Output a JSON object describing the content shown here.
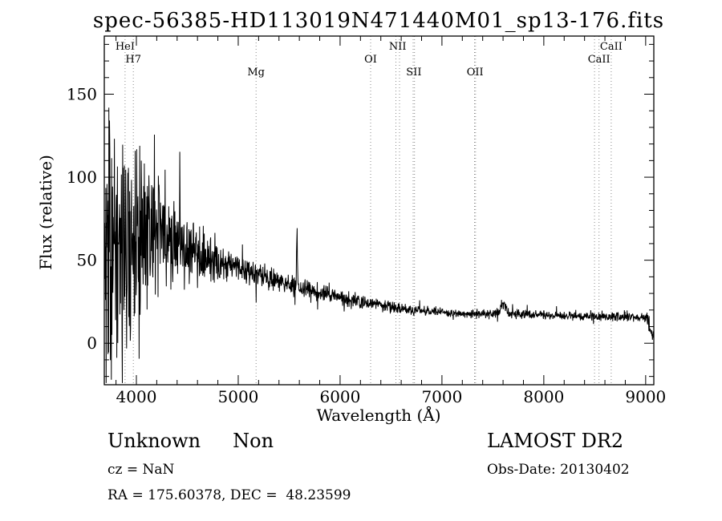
{
  "title": "spec-56385-HD113019N471440M01_sp13-176.fits",
  "chart_data": {
    "type": "line",
    "title": "spec-56385-HD113019N471440M01_sp13-176.fits",
    "xlabel": "Wavelength (Å)",
    "ylabel": "Flux (relative)",
    "series_name": "flux",
    "xlim": [
      3685,
      9080
    ],
    "ylim": [
      -25,
      185
    ],
    "x_major_ticks": [
      4000,
      5000,
      6000,
      7000,
      8000,
      9000
    ],
    "x_minor_tick_step": 200,
    "y_major_ticks": [
      0,
      50,
      100,
      150
    ],
    "y_minor_tick_step": 10,
    "grid": false,
    "line_color": "#000000",
    "marker_color": "#8a8a8a",
    "continuum": [
      [
        3690,
        55
      ],
      [
        3800,
        62
      ],
      [
        3900,
        68
      ],
      [
        4000,
        72
      ],
      [
        4150,
        68
      ],
      [
        4300,
        62
      ],
      [
        4500,
        56
      ],
      [
        4700,
        50
      ],
      [
        4900,
        47
      ],
      [
        5100,
        43
      ],
      [
        5300,
        39
      ],
      [
        5500,
        35
      ],
      [
        5700,
        32
      ],
      [
        5900,
        29
      ],
      [
        6100,
        26
      ],
      [
        6300,
        24
      ],
      [
        6500,
        21.5
      ],
      [
        6800,
        19.5
      ],
      [
        7100,
        18
      ],
      [
        7400,
        17.5
      ],
      [
        7700,
        17.5
      ],
      [
        8000,
        17
      ],
      [
        8300,
        16.5
      ],
      [
        8600,
        16
      ],
      [
        8900,
        15.5
      ],
      [
        9010,
        16
      ],
      [
        9045,
        8
      ],
      [
        9080,
        3
      ]
    ],
    "noise_envelope": [
      [
        3690,
        95
      ],
      [
        3760,
        92
      ],
      [
        3850,
        80
      ],
      [
        3950,
        70
      ],
      [
        4050,
        58
      ],
      [
        4200,
        45
      ],
      [
        4350,
        34
      ],
      [
        4500,
        26
      ],
      [
        4650,
        18
      ],
      [
        4800,
        13
      ],
      [
        5000,
        10
      ],
      [
        5200,
        8.5
      ],
      [
        5400,
        8
      ],
      [
        5600,
        7
      ],
      [
        5800,
        6.5
      ],
      [
        6000,
        5.5
      ],
      [
        6300,
        4.5
      ],
      [
        6600,
        3.8
      ],
      [
        7000,
        3.2
      ],
      [
        7600,
        3.4
      ],
      [
        8200,
        3
      ],
      [
        8800,
        3.2
      ],
      [
        9080,
        4
      ]
    ],
    "peaks": [
      {
        "wavelength": 5577,
        "amplitude": 34,
        "sigma": 4
      },
      {
        "wavelength": 7600,
        "amplitude": 6,
        "sigma": 30
      }
    ],
    "spectral_lines": [
      {
        "label": "HeI",
        "wavelength": 3889,
        "row": 1,
        "lines": [
          3889
        ]
      },
      {
        "label": "H7",
        "wavelength": 3970,
        "row": 2,
        "lines": [
          3970
        ]
      },
      {
        "label": "Mg",
        "wavelength": 5175,
        "row": 3,
        "lines": [
          5175
        ]
      },
      {
        "label": "OI",
        "wavelength": 6300,
        "row": 2,
        "lines": [
          6300
        ]
      },
      {
        "label": "NII",
        "wavelength": 6565,
        "row": 1,
        "lines": [
          6548,
          6583
        ]
      },
      {
        "label": "SII",
        "wavelength": 6724,
        "row": 3,
        "lines": [
          6717,
          6731
        ]
      },
      {
        "label": "OII",
        "wavelength": 7325,
        "row": 3,
        "lines": [
          7320,
          7330
        ]
      },
      {
        "label": "CaII",
        "wavelength": 8662,
        "row": 1,
        "lines": [
          8662
        ]
      },
      {
        "label": "CaII",
        "wavelength": 8542,
        "row": 2,
        "lines": [
          8498,
          8542
        ]
      }
    ]
  },
  "footer": {
    "class_label": "Unknown",
    "subclass_label": "Non",
    "survey": "LAMOST DR2",
    "cz": "cz = NaN",
    "obs_date": "Obs-Date: 20130402",
    "coords": "RA = 175.60378, DEC =  48.23599"
  }
}
